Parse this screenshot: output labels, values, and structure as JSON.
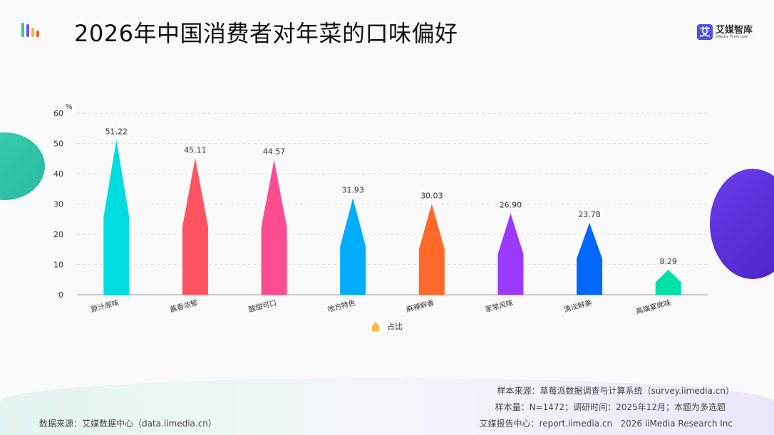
{
  "header": {
    "title": "2026年中国消费者对年菜的口味偏好",
    "brand_name": "艾媒智库",
    "brand_mark": "艾",
    "brand_sub": "iiMedia Think tank"
  },
  "chart_data": {
    "type": "bar",
    "unit_label": "%",
    "categories": [
      "原汁原味",
      "酱香浓郁",
      "酸甜可口",
      "地方特色",
      "麻辣鲜香",
      "家常风味",
      "清淡鲜美",
      "高端宴席味"
    ],
    "values": [
      51.22,
      45.11,
      44.57,
      31.93,
      30.03,
      26.9,
      23.78,
      8.29
    ],
    "value_labels": [
      "51.22",
      "45.11",
      "44.57",
      "31.93",
      "30.03",
      "26.90",
      "23.78",
      "8.29"
    ],
    "colors": [
      "#00dde0",
      "#ff5361",
      "#ff4b8f",
      "#00adff",
      "#ff6a2a",
      "#9b39ff",
      "#0068ff",
      "#00e0a6"
    ],
    "ylim": [
      0,
      60
    ],
    "yticks": [
      "0",
      "10",
      "20",
      "30",
      "40",
      "50",
      "60"
    ],
    "legend": {
      "label": "占比",
      "color": "#fbb84a",
      "position": "bottom"
    },
    "grid": true
  },
  "footer": {
    "source_sample": "样本来源：草莓派数据调查与计算系统（survey.iimedia.cn）",
    "sample_size": "样本量：N=1472；调研时间：2025年12月；本题为多选题",
    "data_source": "数据来源：艾媒数据中心（data.iimedia.cn）",
    "report_center": "艾媒报告中心：report.iimedia.cn   2026 iiMedia Research Inc"
  }
}
